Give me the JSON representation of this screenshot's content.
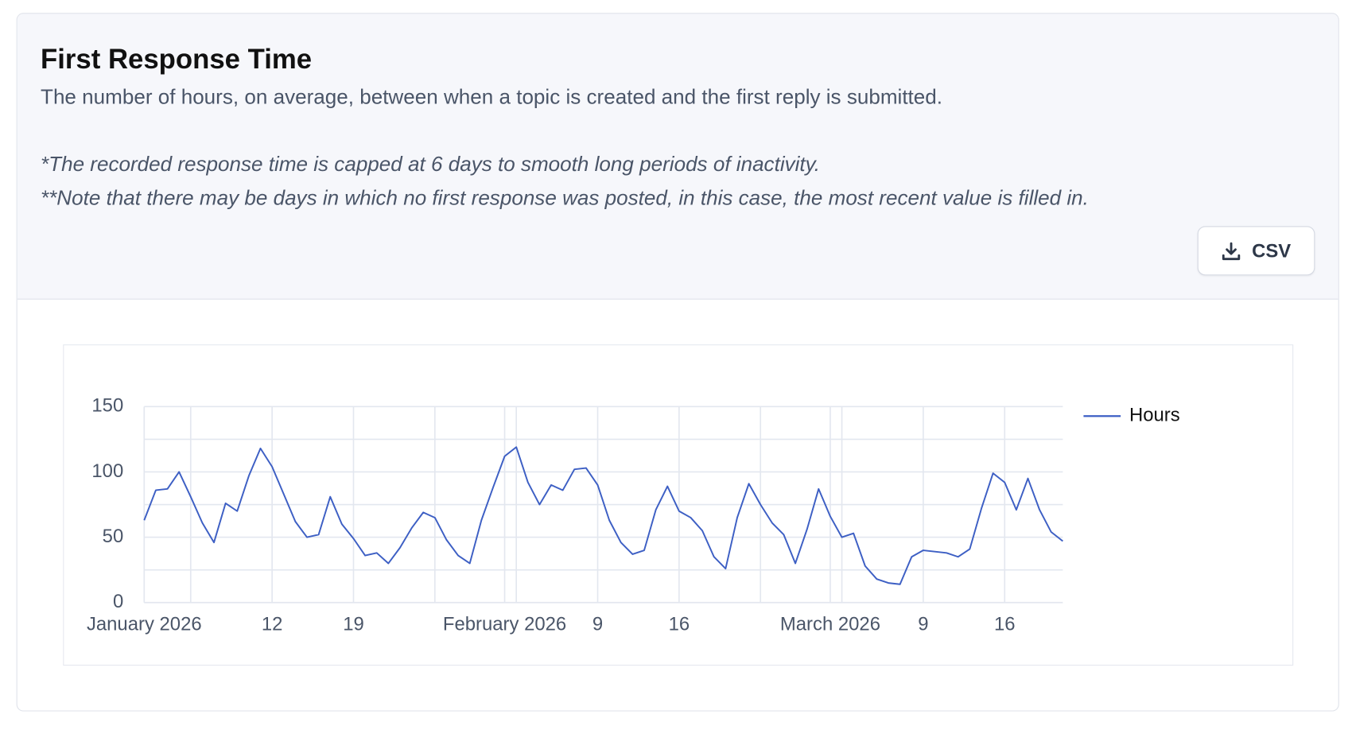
{
  "header": {
    "title": "First Response Time",
    "description": "The number of hours, on average, between when a topic is created and the first reply is submitted.",
    "notes": [
      "*The recorded response time is capped at 6 days to smooth long periods of inactivity.",
      "**Note that there may be days in which no first response was posted, in this case, the most recent value is filled in."
    ],
    "button": "CSV"
  },
  "chart_data": {
    "type": "line",
    "x": [
      "2026-01-01",
      "2026-01-02",
      "2026-01-03",
      "2026-01-04",
      "2026-01-05",
      "2026-01-06",
      "2026-01-07",
      "2026-01-08",
      "2026-01-09",
      "2026-01-10",
      "2026-01-11",
      "2026-01-12",
      "2026-01-13",
      "2026-01-14",
      "2026-01-15",
      "2026-01-16",
      "2026-01-17",
      "2026-01-18",
      "2026-01-19",
      "2026-01-20",
      "2026-01-21",
      "2026-01-22",
      "2026-01-23",
      "2026-01-24",
      "2026-01-25",
      "2026-01-26",
      "2026-01-27",
      "2026-01-28",
      "2026-01-29",
      "2026-01-30",
      "2026-01-31",
      "2026-02-01",
      "2026-02-02",
      "2026-02-03",
      "2026-02-04",
      "2026-02-05",
      "2026-02-06",
      "2026-02-07",
      "2026-02-08",
      "2026-02-09",
      "2026-02-10",
      "2026-02-11",
      "2026-02-12",
      "2026-02-13",
      "2026-02-14",
      "2026-02-15",
      "2026-02-16",
      "2026-02-17",
      "2026-02-18",
      "2026-02-19",
      "2026-02-20",
      "2026-02-21",
      "2026-02-22",
      "2026-02-23",
      "2026-02-24",
      "2026-02-25",
      "2026-02-26",
      "2026-02-27",
      "2026-02-28",
      "2026-03-01",
      "2026-03-02",
      "2026-03-03",
      "2026-03-04",
      "2026-03-05",
      "2026-03-06",
      "2026-03-07",
      "2026-03-08",
      "2026-03-09",
      "2026-03-10",
      "2026-03-11",
      "2026-03-12",
      "2026-03-13",
      "2026-03-14",
      "2026-03-15",
      "2026-03-16",
      "2026-03-17",
      "2026-03-18",
      "2026-03-19",
      "2026-03-20",
      "2026-03-21"
    ],
    "series": [
      {
        "name": "Hours",
        "color": "#3d5fc4",
        "values": [
          63,
          86,
          87,
          100,
          81,
          61,
          46,
          76,
          70,
          97,
          118,
          104,
          83,
          62,
          50,
          52,
          81,
          60,
          49,
          36,
          38,
          30,
          42,
          57,
          69,
          65,
          48,
          36,
          30,
          63,
          88,
          112,
          119,
          92,
          75,
          90,
          86,
          102,
          103,
          90,
          63,
          46,
          37,
          40,
          71,
          89,
          70,
          65,
          55,
          35,
          26,
          65,
          91,
          75,
          61,
          52,
          30,
          56,
          87,
          66,
          50,
          53,
          28,
          18,
          15,
          14,
          35,
          40,
          39,
          38,
          35,
          41,
          72,
          99,
          92,
          71,
          95,
          71,
          54,
          47
        ]
      }
    ],
    "xlim": [
      "2026-01-01",
      "2026-03-21"
    ],
    "xticks": [
      {
        "value": "2026-01-01",
        "label": "January 2026"
      },
      {
        "value": "2026-01-12",
        "label": "12"
      },
      {
        "value": "2026-01-19",
        "label": "19"
      },
      {
        "value": "2026-02-01",
        "label": "February 2026"
      },
      {
        "value": "2026-02-09",
        "label": "9"
      },
      {
        "value": "2026-02-16",
        "label": "16"
      },
      {
        "value": "2026-03-01",
        "label": "March 2026"
      },
      {
        "value": "2026-03-09",
        "label": "9"
      },
      {
        "value": "2026-03-16",
        "label": "16"
      }
    ],
    "x_minor_grid": [
      "2026-01-05",
      "2026-01-26",
      "2026-02-02",
      "2026-02-23",
      "2026-03-02"
    ],
    "ylim": [
      0,
      150
    ],
    "yticks": [
      0,
      50,
      100,
      150
    ],
    "y_minor_grid": [
      25,
      75,
      125
    ],
    "grid": true,
    "legend": "right"
  }
}
